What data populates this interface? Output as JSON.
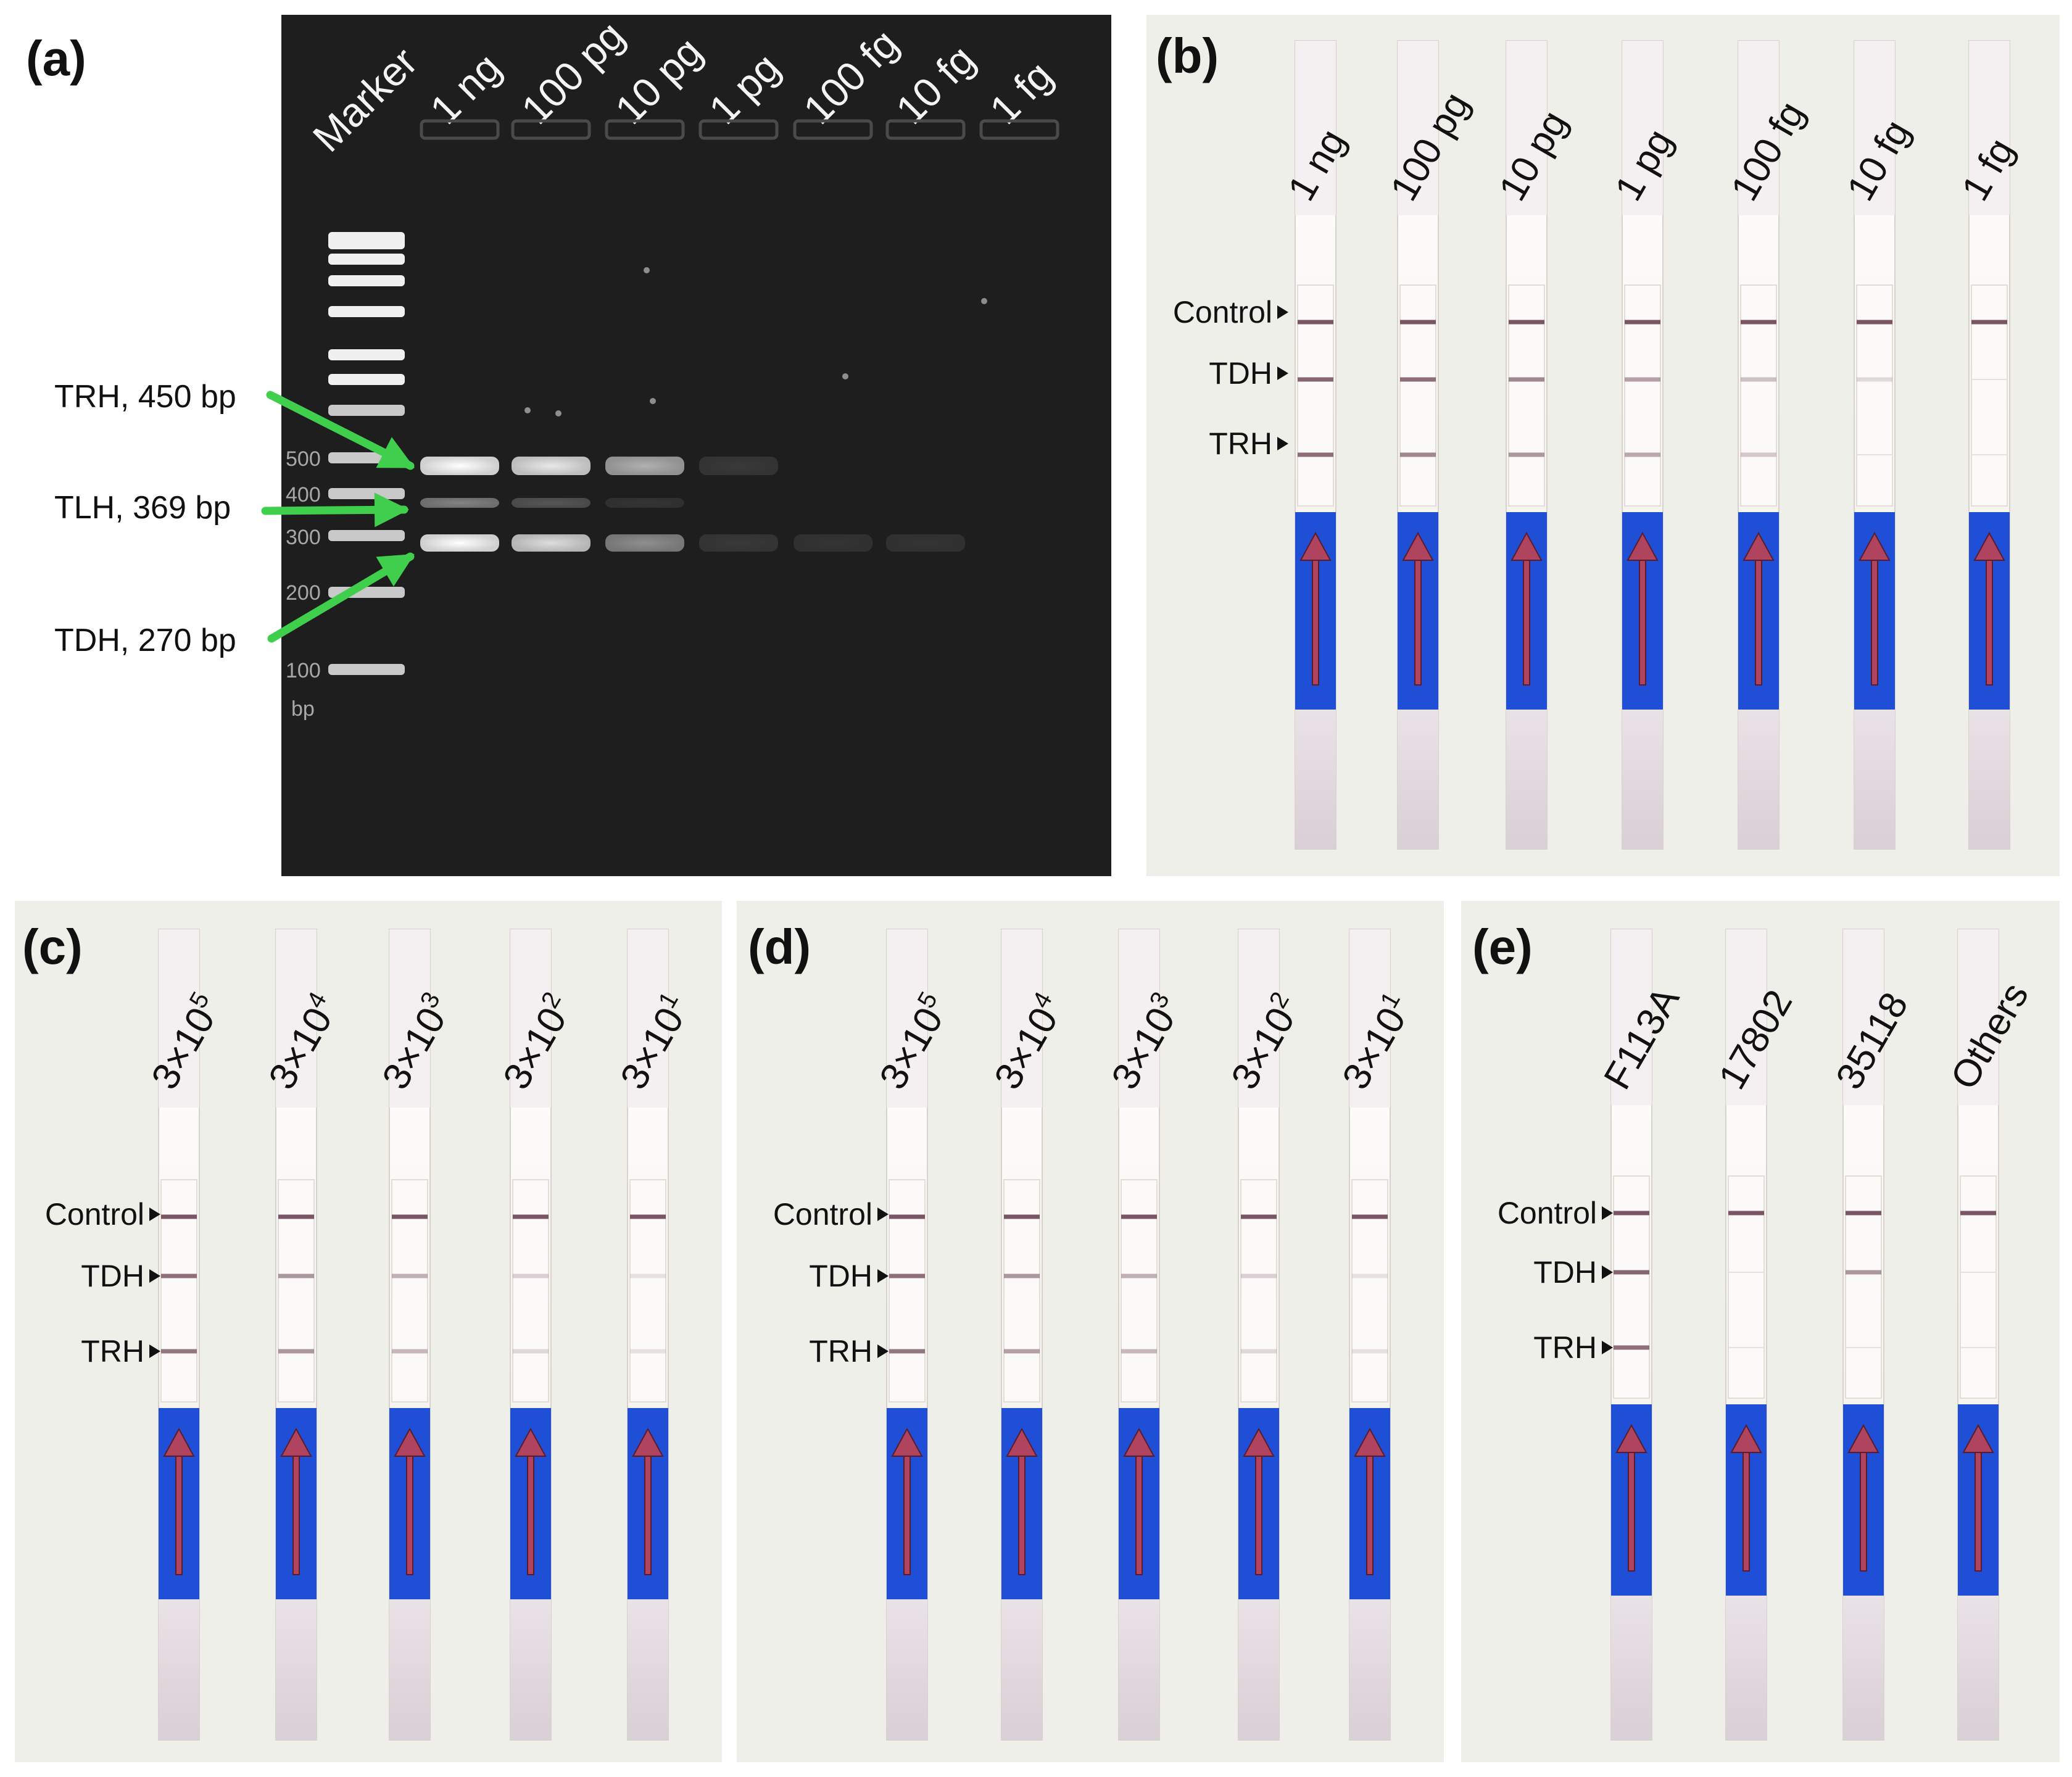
{
  "panels": {
    "a": {
      "label": "(a)",
      "lanes": [
        "Marker",
        "1 ng",
        "100 pg",
        "10 pg",
        "1 pg",
        "100 fg",
        "10 fg",
        "1 fg"
      ],
      "ladder": [
        "500",
        "400",
        "300",
        "200",
        "100",
        "bp"
      ],
      "annotations": [
        "TRH, 450 bp",
        "TLH, 369 bp",
        "TDH, 270 bp"
      ],
      "band_strength": {
        "TRH": [
          1.0,
          0.9,
          0.65,
          0.12,
          0,
          0,
          0
        ],
        "TLH": [
          0.45,
          0.25,
          0.06,
          0,
          0,
          0,
          0
        ],
        "TDH": [
          1.0,
          0.85,
          0.5,
          0.12,
          0.08,
          0.06,
          0
        ]
      }
    },
    "b": {
      "label": "(b)",
      "strips": [
        "1 ng",
        "100 pg",
        "10 pg",
        "1 pg",
        "100 fg",
        "10 fg",
        "1 fg"
      ],
      "markers": [
        "Control",
        "TDH",
        "TRH"
      ],
      "line_strength": {
        "Control": [
          1,
          1,
          1,
          1,
          1,
          1,
          1
        ],
        "TDH": [
          0.9,
          0.85,
          0.7,
          0.55,
          0.35,
          0.2,
          0
        ],
        "TRH": [
          0.85,
          0.7,
          0.6,
          0.5,
          0.3,
          0,
          0
        ]
      }
    },
    "c": {
      "label": "(c)",
      "strips": [
        {
          "base": "3×10",
          "exp": "5"
        },
        {
          "base": "3×10",
          "exp": "4"
        },
        {
          "base": "3×10",
          "exp": "3"
        },
        {
          "base": "3×10",
          "exp": "2"
        },
        {
          "base": "3×10",
          "exp": "1"
        }
      ],
      "markers": [
        "Control",
        "TDH",
        "TRH"
      ],
      "line_strength": {
        "Control": [
          1,
          1,
          1,
          1,
          1
        ],
        "TDH": [
          0.85,
          0.6,
          0.45,
          0.25,
          0.12
        ],
        "TRH": [
          0.8,
          0.6,
          0.4,
          0.2,
          0.1
        ]
      }
    },
    "d": {
      "label": "(d)",
      "strips": [
        {
          "base": "3×10",
          "exp": "5"
        },
        {
          "base": "3×10",
          "exp": "4"
        },
        {
          "base": "3×10",
          "exp": "3"
        },
        {
          "base": "3×10",
          "exp": "2"
        },
        {
          "base": "3×10",
          "exp": "1"
        }
      ],
      "markers": [
        "Control",
        "TDH",
        "TRH"
      ],
      "line_strength": {
        "Control": [
          1,
          1,
          1,
          1,
          1
        ],
        "TDH": [
          0.85,
          0.6,
          0.45,
          0.25,
          0.12
        ],
        "TRH": [
          0.8,
          0.55,
          0.4,
          0.2,
          0.1
        ]
      }
    },
    "e": {
      "label": "(e)",
      "strips": [
        "F113A",
        "17802",
        "35118",
        "Others"
      ],
      "markers": [
        "Control",
        "TDH",
        "TRH"
      ],
      "line_strength": {
        "Control": [
          1,
          1,
          1,
          1
        ],
        "TDH": [
          0.9,
          0,
          0.6,
          0
        ],
        "TRH": [
          0.85,
          0,
          0,
          0
        ]
      }
    }
  },
  "colors": {
    "gel_bg": "#1e1e1e",
    "strip_bg": "#f6f3ef",
    "card_bg": "#eeefe9",
    "blue_pad": "#1f4fd6",
    "arrow": "#b0445e",
    "test_line": "#7a5563",
    "green_arrow": "#3fcf4c"
  }
}
